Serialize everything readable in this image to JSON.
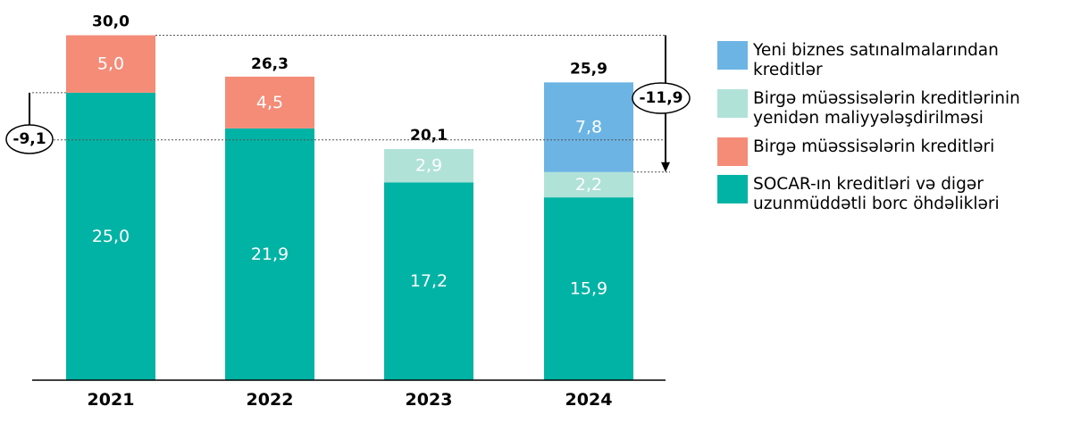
{
  "chart_data": {
    "type": "bar",
    "stacked": true,
    "categories": [
      "2021",
      "2022",
      "2023",
      "2024"
    ],
    "series": [
      {
        "name": "SOCAR-ın kreditləri və digər uzunmüddətli borc öhdəlikləri",
        "color": "#00b3a4",
        "values": [
          25.0,
          21.9,
          17.2,
          15.9
        ],
        "labels": [
          "25,0",
          "21,9",
          "17,2",
          "15,9"
        ]
      },
      {
        "name": "Birgə müəssisələrin kreditləri",
        "color": "#f48c78",
        "values": [
          5.0,
          4.5,
          null,
          null
        ],
        "labels": [
          "5,0",
          "4,5",
          "",
          ""
        ]
      },
      {
        "name": "Birgə müəssisələrin kreditlərinin yenidən maliyyələşdirilməsi",
        "color": "#b0e2d8",
        "values": [
          null,
          null,
          2.9,
          2.2
        ],
        "labels": [
          "",
          "",
          "2,9",
          "2,2"
        ]
      },
      {
        "name": "Yeni biznes satınalmalarından kreditlər",
        "color": "#6cb4e4",
        "values": [
          null,
          null,
          null,
          7.8
        ],
        "labels": [
          "",
          "",
          "",
          "7,8"
        ]
      }
    ],
    "totals": [
      30.0,
      26.3,
      20.1,
      25.9
    ],
    "total_labels": [
      "30,0",
      "26,3",
      "20,1",
      "25,9"
    ],
    "annotations": [
      {
        "text": "-9,1",
        "category": "2021",
        "from": 30.0,
        "to": 20.9
      },
      {
        "text": "-11,9",
        "category": "2024",
        "from": 30.0,
        "to": 18.1
      }
    ],
    "ylim": [
      0,
      31.5
    ],
    "legend_position": "right",
    "legend_order": [
      3,
      2,
      1,
      0
    ]
  }
}
